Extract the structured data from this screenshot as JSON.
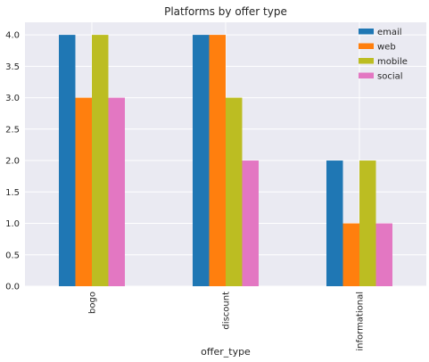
{
  "chart_data": {
    "type": "bar",
    "title": "Platforms by offer type",
    "xlabel": "offer_type",
    "ylabel": "",
    "categories": [
      "bogo",
      "discount",
      "informational"
    ],
    "series": [
      {
        "name": "email",
        "values": [
          4,
          4,
          2
        ],
        "color": "#1f77b4"
      },
      {
        "name": "web",
        "values": [
          3,
          4,
          1
        ],
        "color": "#ff7f0e"
      },
      {
        "name": "mobile",
        "values": [
          4,
          3,
          2
        ],
        "color": "#bcbd22"
      },
      {
        "name": "social",
        "values": [
          3,
          2,
          1
        ],
        "color": "#e377c2"
      }
    ],
    "ylim": [
      0,
      4.2
    ],
    "yticks": [
      "0.0",
      "0.5",
      "1.0",
      "1.5",
      "2.0",
      "2.5",
      "3.0",
      "3.5",
      "4.0"
    ],
    "grid": true,
    "legend_position": "top-right",
    "background_color": "#eaeaf2"
  }
}
